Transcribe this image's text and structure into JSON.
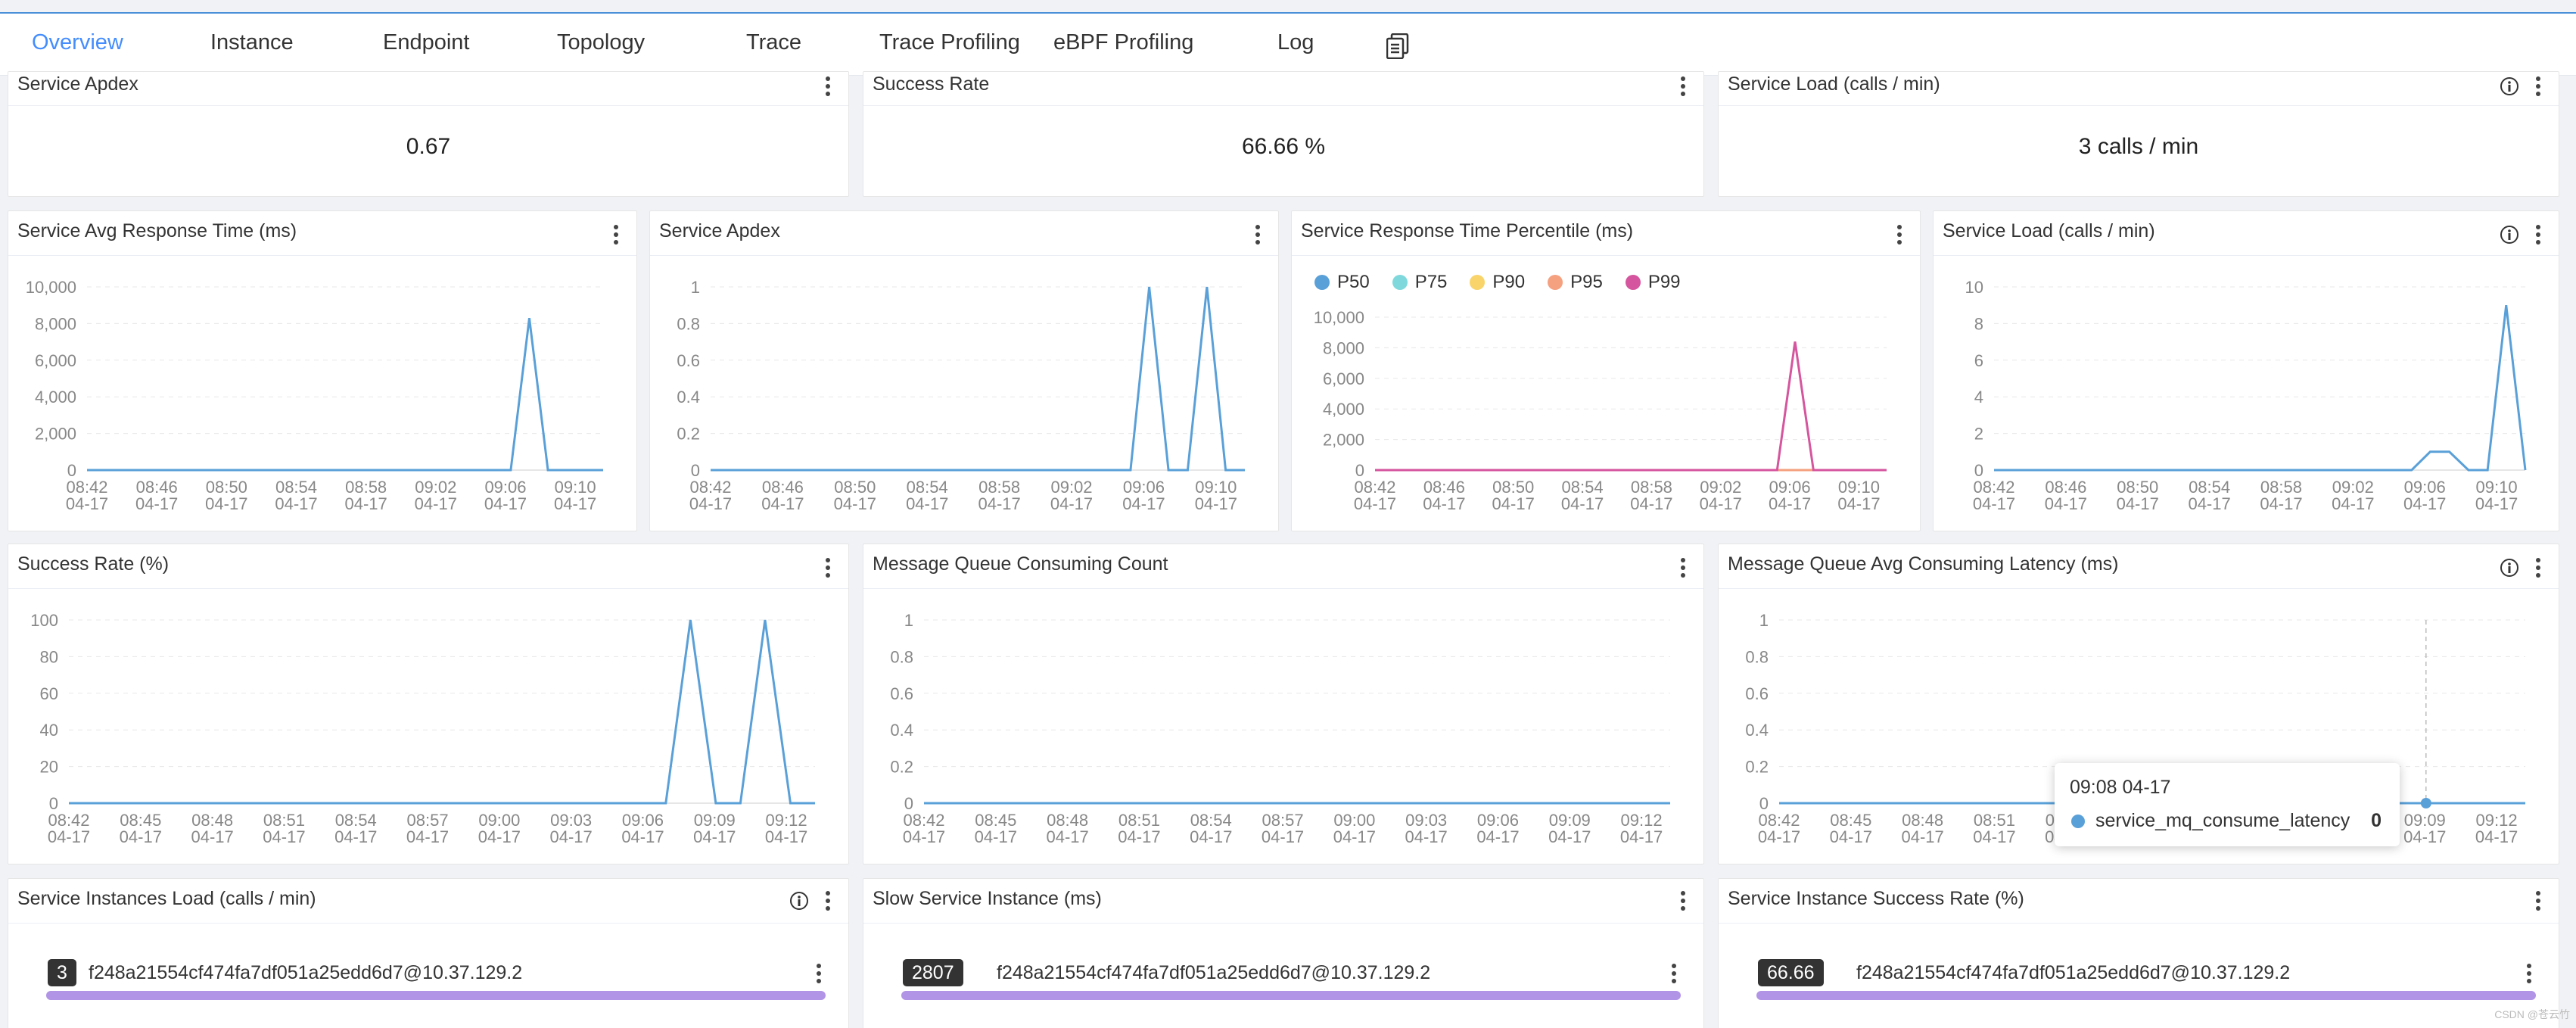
{
  "tabs": [
    "Overview",
    "Instance",
    "Endpoint",
    "Topology",
    "Trace",
    "Trace Profiling",
    "eBPF Profiling",
    "Log"
  ],
  "active_tab": "Overview",
  "colors": {
    "accent": "#448dfe",
    "line": "#5aa0d8",
    "p50": "#5aa0d8",
    "p75": "#7fd9dc",
    "p90": "#f8d46b",
    "p95": "#f5a07f",
    "p99": "#d5559e",
    "bar": "#b194e6"
  },
  "cards": [
    {
      "title": "Service Apdex",
      "value": "0.67"
    },
    {
      "title": "Success Rate",
      "value": "66.66 %"
    },
    {
      "title": "Service Load (calls / min)",
      "value": "3 calls / min"
    }
  ],
  "chart_data": [
    {
      "type": "line",
      "title": "Service Avg Response Time (ms)",
      "x": [
        "08:42\n04-17",
        "08:46\n04-17",
        "08:50\n04-17",
        "08:54\n04-17",
        "08:58\n04-17",
        "09:02\n04-17",
        "09:06\n04-17",
        "09:10\n04-17"
      ],
      "y_ticks": [
        0,
        2000,
        4000,
        6000,
        8000,
        10000
      ],
      "ylim": [
        0,
        10000
      ],
      "points": [
        [
          0,
          0
        ],
        [
          0.821,
          0
        ],
        [
          0.857,
          8300
        ],
        [
          0.893,
          0
        ],
        [
          1,
          0
        ]
      ]
    },
    {
      "type": "line",
      "title": "Service Apdex",
      "x": [
        "08:42\n04-17",
        "08:46\n04-17",
        "08:50\n04-17",
        "08:54\n04-17",
        "08:58\n04-17",
        "09:02\n04-17",
        "09:06\n04-17",
        "09:10\n04-17"
      ],
      "y_ticks": [
        0,
        0.2,
        0.4,
        0.6,
        0.8,
        1
      ],
      "ylim": [
        0,
        1
      ],
      "points": [
        [
          0,
          0
        ],
        [
          0.786,
          0
        ],
        [
          0.821,
          1
        ],
        [
          0.857,
          0
        ],
        [
          0.893,
          0
        ],
        [
          0.929,
          1
        ],
        [
          0.964,
          0
        ],
        [
          1,
          0
        ]
      ]
    },
    {
      "type": "line",
      "title": "Service Response Time Percentile (ms)",
      "legend": [
        "P50",
        "P75",
        "P90",
        "P95",
        "P99"
      ],
      "x": [
        "08:42\n04-17",
        "08:46\n04-17",
        "08:50\n04-17",
        "08:54\n04-17",
        "08:58\n04-17",
        "09:02\n04-17",
        "09:06\n04-17",
        "09:10\n04-17"
      ],
      "y_ticks": [
        0,
        2000,
        4000,
        6000,
        8000,
        10000
      ],
      "ylim": [
        0,
        10000
      ],
      "series": [
        {
          "name": "P50",
          "points": [
            [
              0,
              0
            ],
            [
              1,
              0
            ]
          ]
        },
        {
          "name": "P75",
          "points": [
            [
              0,
              0
            ],
            [
              1,
              0
            ]
          ]
        },
        {
          "name": "P90",
          "points": [
            [
              0,
              0
            ],
            [
              1,
              0
            ]
          ]
        },
        {
          "name": "P95",
          "points": [
            [
              0,
              0
            ],
            [
              1,
              0
            ]
          ]
        },
        {
          "name": "P99",
          "points": [
            [
              0,
              0
            ],
            [
              0.786,
              0
            ],
            [
              0.821,
              8400
            ],
            [
              0.857,
              0
            ],
            [
              1,
              0
            ]
          ]
        }
      ]
    },
    {
      "type": "line",
      "title": "Service Load (calls / min)",
      "x": [
        "08:42\n04-17",
        "08:46\n04-17",
        "08:50\n04-17",
        "08:54\n04-17",
        "08:58\n04-17",
        "09:02\n04-17",
        "09:06\n04-17",
        "09:10\n04-17"
      ],
      "y_ticks": [
        0,
        2,
        4,
        6,
        8,
        10
      ],
      "ylim": [
        0,
        10
      ],
      "points": [
        [
          0,
          0
        ],
        [
          0.786,
          0
        ],
        [
          0.821,
          1
        ],
        [
          0.857,
          1
        ],
        [
          0.893,
          0
        ],
        [
          0.929,
          0
        ],
        [
          0.964,
          9
        ],
        [
          1,
          0
        ],
        [
          1.036,
          0
        ]
      ]
    },
    {
      "type": "line",
      "title": "Success Rate (%)",
      "x": [
        "08:42\n04-17",
        "08:45\n04-17",
        "08:48\n04-17",
        "08:51\n04-17",
        "08:54\n04-17",
        "08:57\n04-17",
        "09:00\n04-17",
        "09:03\n04-17",
        "09:06\n04-17",
        "09:09\n04-17",
        "09:12\n04-17"
      ],
      "y_ticks": [
        0,
        20,
        40,
        60,
        80,
        100
      ],
      "ylim": [
        0,
        100
      ],
      "points": [
        [
          0,
          0
        ],
        [
          0.8,
          0
        ],
        [
          0.833,
          100
        ],
        [
          0.867,
          0
        ],
        [
          0.9,
          0
        ],
        [
          0.933,
          100
        ],
        [
          0.967,
          0
        ],
        [
          1,
          0
        ]
      ]
    },
    {
      "type": "line",
      "title": "Message Queue Consuming Count",
      "x": [
        "08:42\n04-17",
        "08:45\n04-17",
        "08:48\n04-17",
        "08:51\n04-17",
        "08:54\n04-17",
        "08:57\n04-17",
        "09:00\n04-17",
        "09:03\n04-17",
        "09:06\n04-17",
        "09:09\n04-17",
        "09:12\n04-17"
      ],
      "y_ticks": [
        0,
        0.2,
        0.4,
        0.6,
        0.8,
        1
      ],
      "ylim": [
        0,
        1
      ],
      "points": [
        [
          0,
          0
        ],
        [
          1,
          0
        ]
      ]
    },
    {
      "type": "line",
      "title": "Message Queue Avg Consuming Latency (ms)",
      "x": [
        "08:42\n04-17",
        "08:45\n04-17",
        "08:48\n04-17",
        "08:51\n04-17",
        "08:54\n04-17",
        "08:57\n04-17",
        "09:00\n04-17",
        "09:03\n04-17",
        "09:06\n04-17",
        "09:09\n04-17",
        "09:12\n04-17"
      ],
      "y_ticks": [
        0,
        0.2,
        0.4,
        0.6,
        0.8,
        1
      ],
      "ylim": [
        0,
        1
      ],
      "points": [
        [
          0,
          0
        ],
        [
          1,
          0
        ]
      ],
      "highlight_x": 0.867
    }
  ],
  "tooltip": {
    "time": "09:08 04-17",
    "series": "service_mq_consume_latency",
    "value": "0"
  },
  "instances": [
    {
      "title": "Service Instances Load (calls / min)",
      "badge": "3",
      "name": "f248a21554cf474fa7df051a25edd6d7@10.37.129.2"
    },
    {
      "title": "Slow Service Instance (ms)",
      "badge": "2807",
      "name": "f248a21554cf474fa7df051a25edd6d7@10.37.129.2"
    },
    {
      "title": "Service Instance Success Rate (%)",
      "badge": "66.66",
      "name": "f248a21554cf474fa7df051a25edd6d7@10.37.129.2"
    }
  ],
  "watermark": "CSDN @苍云竹"
}
